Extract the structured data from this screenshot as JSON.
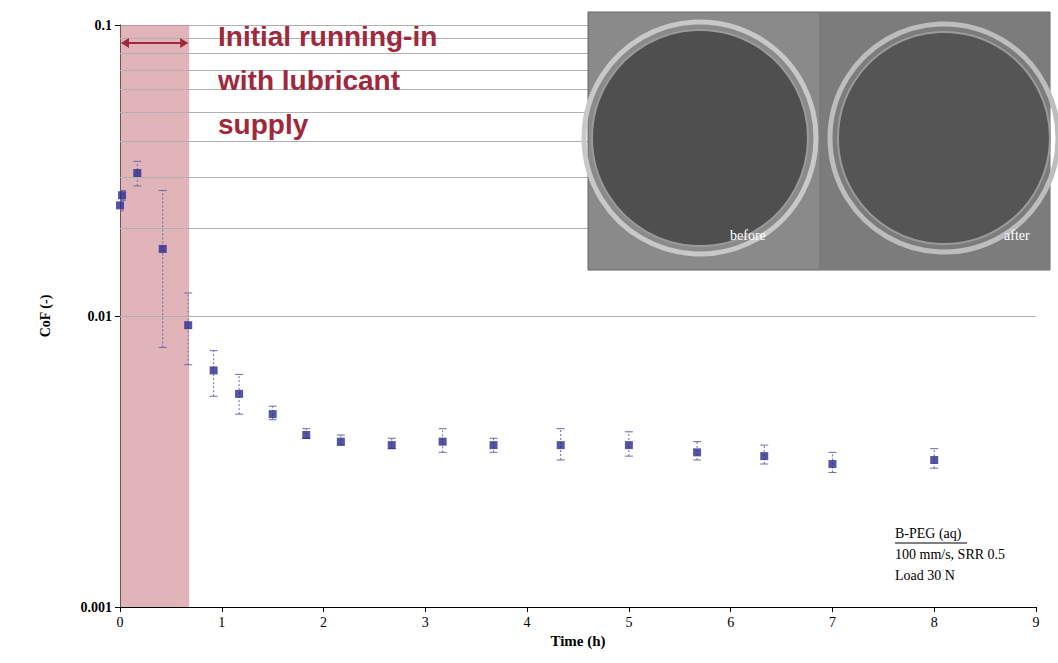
{
  "chart_data": {
    "type": "scatter",
    "x": [
      0,
      0.02,
      0.17,
      0.42,
      0.67,
      0.92,
      1.17,
      1.5,
      1.83,
      2.17,
      2.67,
      3.17,
      3.67,
      4.33,
      5.0,
      5.67,
      6.33,
      7.0,
      8.0
    ],
    "values": [
      0.024,
      0.026,
      0.031,
      0.017,
      0.0093,
      0.0065,
      0.0054,
      0.0046,
      0.0039,
      0.0037,
      0.0036,
      0.0037,
      0.0036,
      0.0036,
      0.0036,
      0.0034,
      0.0033,
      0.0031,
      0.0032
    ],
    "error_bar_low": [
      0.023,
      0.025,
      0.028,
      0.0078,
      0.0068,
      0.0053,
      0.0046,
      0.0044,
      0.0038,
      0.0036,
      0.0035,
      0.0034,
      0.0034,
      0.0032,
      0.0033,
      0.0032,
      0.0031,
      0.0029,
      0.003
    ],
    "error_bar_high": [
      0.025,
      0.027,
      0.034,
      0.027,
      0.012,
      0.0076,
      0.0063,
      0.0049,
      0.0041,
      0.0039,
      0.0038,
      0.0041,
      0.0038,
      0.0041,
      0.004,
      0.0037,
      0.0036,
      0.0034,
      0.0035
    ],
    "color": "#2b2b8c",
    "marker": "square",
    "xlabel": "Time (h)",
    "ylabel": "CoF (-)",
    "xlim": [
      0,
      9
    ],
    "xticks": [
      0,
      1,
      2,
      3,
      4,
      5,
      6,
      7,
      8,
      9
    ],
    "ylim": [
      0.001,
      0.1
    ],
    "yticks": [
      0.001,
      0.01,
      0.1
    ],
    "log": "y",
    "grid": true,
    "shaded_region": {
      "x": [
        0,
        0.68
      ],
      "label": [
        "Initial running-in",
        "with lubricant",
        "supply"
      ]
    },
    "inset": {
      "labels": [
        "before",
        "after"
      ]
    },
    "conditions": [
      "B-PEG (aq)",
      "100 mm/s, SRR 0.5",
      "Load 30 N"
    ]
  }
}
